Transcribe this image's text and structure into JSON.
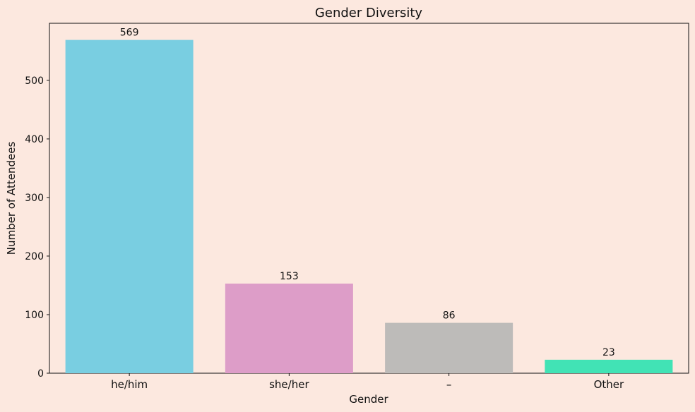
{
  "chart_data": {
    "type": "bar",
    "title": "Gender Diversity",
    "xlabel": "Gender",
    "ylabel": "Number of Attendees",
    "categories": [
      "he/him",
      "she/her",
      "–",
      "Other"
    ],
    "values": [
      569,
      153,
      86,
      23
    ],
    "value_labels": [
      "569",
      "153",
      "86",
      "23"
    ],
    "bar_colors": [
      "#79cee1",
      "#dd9dc8",
      "#bdbbb9",
      "#41e3b5"
    ],
    "ylim": [
      0,
      597.45
    ],
    "yticks": [
      0,
      100,
      200,
      300,
      400,
      500
    ],
    "ytick_labels": [
      "0",
      "100",
      "200",
      "300",
      "400",
      "500"
    ],
    "grid": false,
    "background_color": "#fce8df"
  }
}
